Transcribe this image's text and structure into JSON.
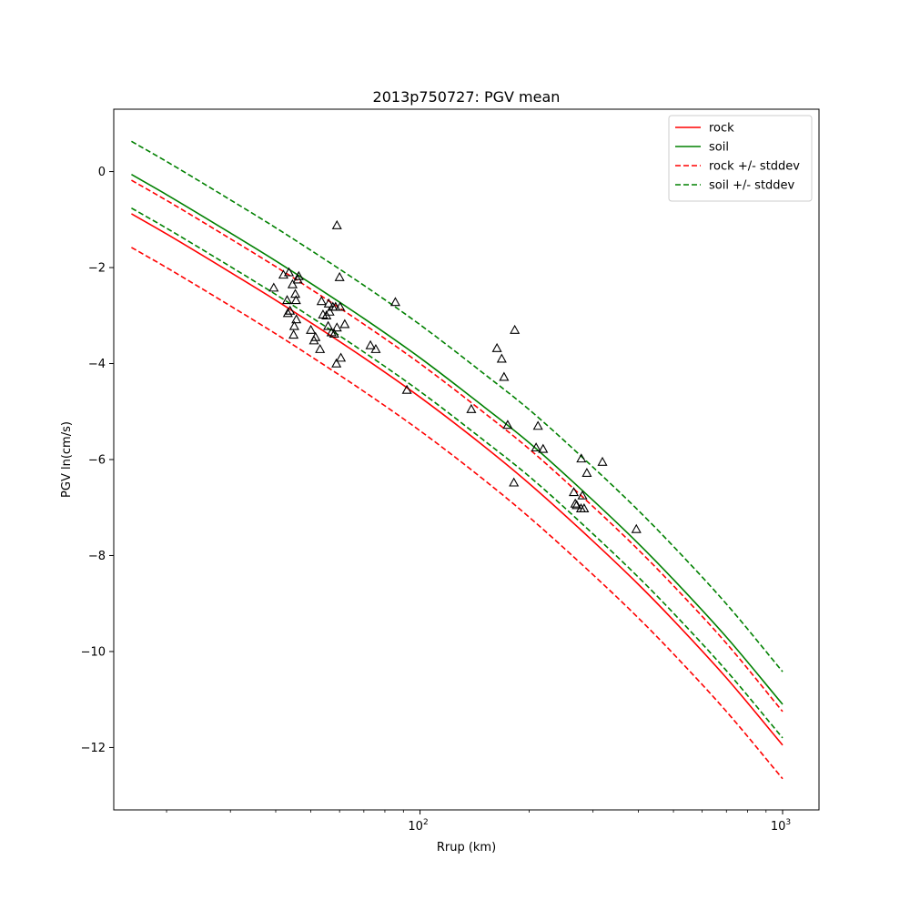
{
  "chart_data": {
    "type": "line",
    "title": "2013p750727: PGV mean",
    "xlabel": "Rrup (km)",
    "ylabel": "PGV ln(cm/s)",
    "xscale": "log",
    "xlim": [
      14.3,
      1260
    ],
    "ylim": [
      -13.3,
      1.3
    ],
    "major_x_ticks": [
      {
        "value": 100,
        "base": "10",
        "exp": "2"
      },
      {
        "value": 1000,
        "base": "10",
        "exp": "3"
      }
    ],
    "minor_x_ticks": [
      20,
      30,
      40,
      50,
      60,
      70,
      80,
      90,
      200,
      300,
      400,
      500,
      600,
      700,
      800,
      900
    ],
    "y_ticks": [
      {
        "value": 0,
        "label": "0"
      },
      {
        "value": -2,
        "label": "−2"
      },
      {
        "value": -4,
        "label": "−4"
      },
      {
        "value": -6,
        "label": "−6"
      },
      {
        "value": -8,
        "label": "−8"
      },
      {
        "value": -10,
        "label": "−10"
      },
      {
        "value": -12,
        "label": "−12"
      }
    ],
    "legend_position": "top-right",
    "grid": false,
    "x": [
      16,
      20,
      30,
      40,
      50,
      70,
      100,
      150,
      200,
      300,
      400,
      500,
      700,
      1000
    ],
    "series": [
      {
        "name": "rock",
        "color": "#ff0000",
        "style": "solid",
        "values": [
          -0.88,
          -1.3,
          -2.1,
          -2.68,
          -3.15,
          -3.88,
          -4.7,
          -5.72,
          -6.5,
          -7.7,
          -8.6,
          -9.35,
          -10.55,
          -11.95
        ]
      },
      {
        "name": "soil",
        "color": "#008000",
        "style": "solid",
        "values": [
          -0.06,
          -0.48,
          -1.28,
          -1.86,
          -2.33,
          -3.06,
          -3.88,
          -4.9,
          -5.65,
          -6.85,
          -7.75,
          -8.5,
          -9.7,
          -11.1
        ]
      },
      {
        "name": "rock +/- stddev",
        "color": "#ff0000",
        "style": "dashed",
        "values": [
          -0.18,
          -0.6,
          -1.4,
          -1.98,
          -2.45,
          -3.18,
          -4.0,
          -5.02,
          -5.78,
          -6.98,
          -7.88,
          -8.63,
          -9.83,
          -11.25
        ]
      },
      {
        "name": "",
        "color": "#ff0000",
        "style": "dashed",
        "values": [
          -1.58,
          -2.0,
          -2.8,
          -3.38,
          -3.85,
          -4.58,
          -5.4,
          -6.42,
          -7.2,
          -8.4,
          -9.3,
          -10.05,
          -11.25,
          -12.65
        ]
      },
      {
        "name": "soil +/- stddev",
        "color": "#008000",
        "style": "dashed",
        "values": [
          0.63,
          0.21,
          -0.59,
          -1.17,
          -1.64,
          -2.37,
          -3.19,
          -4.21,
          -4.96,
          -6.16,
          -7.06,
          -7.81,
          -9.01,
          -10.42
        ]
      },
      {
        "name": "",
        "color": "#008000",
        "style": "dashed",
        "values": [
          -0.76,
          -1.18,
          -1.98,
          -2.56,
          -3.03,
          -3.76,
          -4.58,
          -5.6,
          -6.35,
          -7.55,
          -8.45,
          -9.2,
          -10.4,
          -11.8
        ]
      }
    ],
    "observations": [
      {
        "x": 39.5,
        "y": -2.42
      },
      {
        "x": 42.0,
        "y": -2.15
      },
      {
        "x": 43.5,
        "y": -2.1
      },
      {
        "x": 43.0,
        "y": -2.68
      },
      {
        "x": 44.5,
        "y": -2.35
      },
      {
        "x": 43.8,
        "y": -2.9
      },
      {
        "x": 43.2,
        "y": -2.95
      },
      {
        "x": 45.3,
        "y": -2.55
      },
      {
        "x": 45.5,
        "y": -2.68
      },
      {
        "x": 46.0,
        "y": -2.25
      },
      {
        "x": 46.3,
        "y": -2.18
      },
      {
        "x": 45.6,
        "y": -3.08
      },
      {
        "x": 45.0,
        "y": -3.22
      },
      {
        "x": 44.8,
        "y": -3.4
      },
      {
        "x": 50.0,
        "y": -3.3
      },
      {
        "x": 51.0,
        "y": -3.52
      },
      {
        "x": 51.5,
        "y": -3.45
      },
      {
        "x": 53.0,
        "y": -3.7
      },
      {
        "x": 53.5,
        "y": -2.7
      },
      {
        "x": 54.0,
        "y": -2.98
      },
      {
        "x": 55.2,
        "y": -3.0
      },
      {
        "x": 56.0,
        "y": -2.75
      },
      {
        "x": 56.3,
        "y": -2.92
      },
      {
        "x": 55.8,
        "y": -3.22
      },
      {
        "x": 57.0,
        "y": -3.35
      },
      {
        "x": 57.5,
        "y": -2.82
      },
      {
        "x": 58.5,
        "y": -2.82
      },
      {
        "x": 58.0,
        "y": -3.38
      },
      {
        "x": 59.0,
        "y": -3.25
      },
      {
        "x": 58.8,
        "y": -4.0
      },
      {
        "x": 60.2,
        "y": -2.82
      },
      {
        "x": 60.5,
        "y": -3.88
      },
      {
        "x": 62.0,
        "y": -3.18
      },
      {
        "x": 59.0,
        "y": -1.12
      },
      {
        "x": 60.0,
        "y": -2.2
      },
      {
        "x": 73.0,
        "y": -3.62
      },
      {
        "x": 75.5,
        "y": -3.7
      },
      {
        "x": 85.5,
        "y": -2.72
      },
      {
        "x": 92.0,
        "y": -4.55
      },
      {
        "x": 138.5,
        "y": -4.95
      },
      {
        "x": 163.0,
        "y": -3.68
      },
      {
        "x": 168.0,
        "y": -3.9
      },
      {
        "x": 170.5,
        "y": -4.28
      },
      {
        "x": 174.5,
        "y": -5.28
      },
      {
        "x": 182.5,
        "y": -3.3
      },
      {
        "x": 181.5,
        "y": -6.48
      },
      {
        "x": 211.5,
        "y": -5.3
      },
      {
        "x": 209.0,
        "y": -5.75
      },
      {
        "x": 218.5,
        "y": -5.78
      },
      {
        "x": 265.5,
        "y": -6.68
      },
      {
        "x": 268.0,
        "y": -6.92
      },
      {
        "x": 270.5,
        "y": -6.95
      },
      {
        "x": 278.5,
        "y": -5.98
      },
      {
        "x": 280.5,
        "y": -6.75
      },
      {
        "x": 278.0,
        "y": -7.02
      },
      {
        "x": 283.5,
        "y": -7.02
      },
      {
        "x": 288.5,
        "y": -6.28
      },
      {
        "x": 318.5,
        "y": -6.05
      },
      {
        "x": 395.0,
        "y": -7.45
      }
    ]
  }
}
